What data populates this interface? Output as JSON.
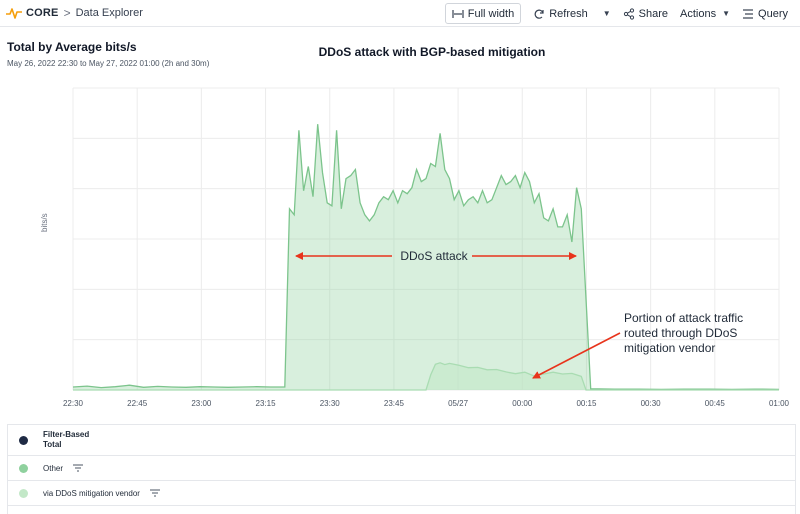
{
  "header": {
    "brand": "CORE",
    "breadcrumb_sep": ">",
    "page": "Data Explorer"
  },
  "toolbar": {
    "full_width": "Full width",
    "refresh": "Refresh",
    "share": "Share",
    "actions": "Actions",
    "query": "Query"
  },
  "panel": {
    "title": "Total by Average bits/s",
    "subtitle": "May 26, 2022 22:30 to May 27, 2022 01:00 (2h and 30m)"
  },
  "legend": {
    "header_line1": "Filter-Based",
    "header_line2": "Total",
    "items": [
      {
        "name": "Other",
        "color": "#8fd19e"
      },
      {
        "name": "via DDoS mitigation vendor",
        "color": "#c3e8c8"
      }
    ],
    "header_color": "#1e2a44"
  },
  "chart_data": {
    "type": "area",
    "title": "DDoS attack with BGP-based mitigation",
    "ylabel": "bits/s",
    "xlabel": "",
    "x_ticks": [
      "22:30",
      "22:45",
      "23:00",
      "23:15",
      "23:30",
      "23:45",
      "05/27",
      "00:00",
      "00:15",
      "00:30",
      "00:45",
      "01:00"
    ],
    "x_range_minutes": [
      0,
      150
    ],
    "ylim": [
      0,
      100
    ],
    "grid": true,
    "series": [
      {
        "name": "Other",
        "color": "#8fd19e",
        "x": [
          0,
          3,
          6,
          9,
          12,
          15,
          18,
          21,
          24,
          27,
          30,
          33,
          36,
          39,
          42,
          45,
          46,
          47,
          48,
          49,
          50,
          51,
          52,
          53,
          54,
          55,
          56,
          57,
          58,
          59,
          60,
          61,
          62,
          63,
          64,
          65,
          66,
          67,
          68,
          69,
          70,
          71,
          72,
          73,
          74,
          75,
          76,
          77,
          78,
          79,
          80,
          81,
          82,
          83,
          84,
          85,
          86,
          87,
          88,
          89,
          90,
          91,
          92,
          93,
          94,
          95,
          96,
          97,
          98,
          99,
          100,
          101,
          102,
          103,
          104,
          105,
          106,
          107,
          108,
          110,
          115,
          120,
          125,
          130,
          135,
          140,
          145,
          150
        ],
        "values": [
          1,
          1.3,
          0.8,
          1.1,
          1.6,
          0.9,
          1.2,
          1,
          0.9,
          1.1,
          1,
          0.9,
          1,
          1.1,
          1,
          1,
          60,
          58,
          86,
          66,
          74,
          64,
          88,
          72,
          62,
          61,
          86,
          60,
          70,
          71,
          73,
          62,
          58,
          56,
          58,
          62,
          64,
          63,
          66,
          62,
          66,
          65,
          67,
          73,
          69,
          70,
          75,
          74,
          85,
          73,
          70,
          63,
          66,
          61,
          63,
          64,
          62,
          66,
          62,
          63,
          67,
          71,
          68,
          69,
          71,
          67,
          72,
          69,
          62,
          65,
          57,
          56,
          60,
          54,
          54,
          58,
          49,
          67,
          60,
          0.4,
          0.3,
          0.3,
          0.2,
          0.3,
          0.3,
          0.2,
          0.3,
          0.2
        ]
      },
      {
        "name": "via DDoS mitigation vendor",
        "color": "#c3e8c8",
        "x": [
          0,
          75,
          76,
          77,
          78,
          79,
          80,
          82,
          84,
          86,
          88,
          90,
          92,
          94,
          96,
          98,
          100,
          102,
          104,
          106,
          107,
          108,
          109,
          150
        ],
        "values": [
          0,
          0,
          5,
          8.5,
          9,
          8.4,
          8.8,
          8.2,
          7.4,
          7.5,
          6.7,
          6.8,
          6,
          5.4,
          5.9,
          4.6,
          5.3,
          5.9,
          5.3,
          5.5,
          5,
          4.5,
          0,
          0
        ]
      }
    ],
    "annotations": [
      {
        "text": "DDoS attack"
      },
      {
        "text": "Portion of attack traffic"
      },
      {
        "text": "routed through DDoS"
      },
      {
        "text": "mitigation vendor"
      }
    ],
    "annotation_color": "#e8341c"
  }
}
